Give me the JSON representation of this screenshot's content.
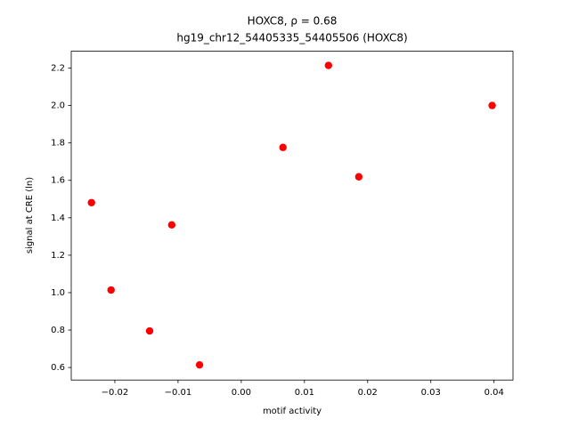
{
  "chart_data": {
    "type": "scatter",
    "title": "HOXC8, ρ = 0.68",
    "subtitle": "hg19_chr12_54405335_54405506 (HOXC8)",
    "x_label": "motif activity",
    "y_label": "signal at CRE (ln)",
    "series": [
      {
        "name": "HOXC8",
        "color": "#ff0000",
        "x": [
          -0.0237,
          -0.0206,
          -0.0145,
          -0.011,
          -0.0066,
          0.0066,
          0.0138,
          0.0186,
          0.0397
        ],
        "values": [
          1.481,
          1.014,
          0.795,
          1.362,
          0.614,
          1.776,
          2.214,
          1.619,
          2.0
        ]
      }
    ],
    "xlim": [
      -0.0269,
      0.043
    ],
    "ylim": [
      0.533,
      2.29
    ],
    "xticks": [
      {
        "value": -0.02,
        "label": "−0.02"
      },
      {
        "value": -0.01,
        "label": "−0.01"
      },
      {
        "value": 0,
        "label": "0.00"
      },
      0.01,
      0.02,
      0.03,
      0.04
    ],
    "yticks": [
      0.6,
      0.8,
      {
        "value": 1.0,
        "label": "1.0"
      },
      1.2,
      1.4,
      1.6,
      1.8,
      {
        "value": 2.0,
        "label": "2.0"
      },
      2.2
    ],
    "grid": false
  }
}
